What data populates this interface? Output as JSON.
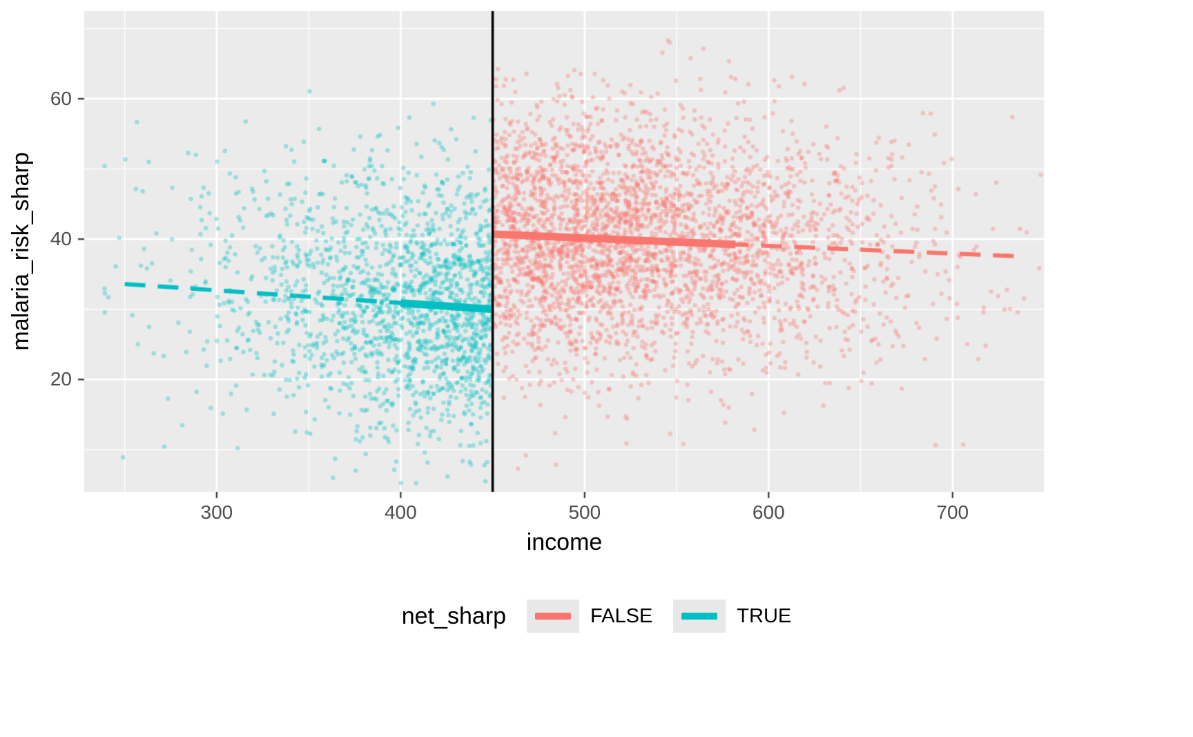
{
  "chart_data": {
    "type": "scatter",
    "title": "",
    "xlabel": "income",
    "ylabel": "malaria_risk_sharp",
    "xlim": [
      228,
      750
    ],
    "ylim": [
      4,
      72.5
    ],
    "xticks": [
      300,
      400,
      500,
      600,
      700
    ],
    "yticks": [
      20,
      40,
      60
    ],
    "x_minor_gridlines": [
      250,
      350,
      450,
      550,
      650,
      750
    ],
    "y_minor_gridlines": [
      10,
      30,
      50,
      70
    ],
    "grid": "on",
    "cutoff_x": 450,
    "legend": {
      "title": "net_sharp",
      "position": "bottom",
      "entries": [
        {
          "label": "FALSE",
          "color": "#F8766D"
        },
        {
          "label": "TRUE",
          "color": "#00BFC4"
        }
      ]
    },
    "series": [
      {
        "name": "FALSE",
        "color": "#F8766D",
        "region": "income > 450",
        "trend": {
          "x0": 450,
          "y0": 40.7,
          "x1": 740,
          "y1": 37.5,
          "solid": [
            450,
            582
          ],
          "dashed": [
            452,
            740
          ]
        }
      },
      {
        "name": "TRUE",
        "color": "#00BFC4",
        "region": "income < 450",
        "trend": {
          "x0": 250,
          "y0": 33.6,
          "x1": 450,
          "y1": 30.0,
          "solid": [
            400,
            450
          ],
          "dashed": [
            250,
            448
          ]
        }
      }
    ],
    "points": {
      "n": 5000,
      "seed": 20240,
      "x_mean": 487,
      "x_sd": 88,
      "x_min": 238,
      "x_max": 748,
      "noise_sd": 9.4,
      "alpha": 0.35,
      "radius": 3.2
    },
    "style": {
      "panel_bg": "#EBEBEB",
      "grid_color": "#FFFFFF",
      "tick_text_color": "#4D4D4D",
      "axis_title_color": "#000000",
      "cutoff_color": "#000000",
      "legend_key_bg": "#E8E8E8",
      "tick_mark_color": "#333333"
    }
  }
}
